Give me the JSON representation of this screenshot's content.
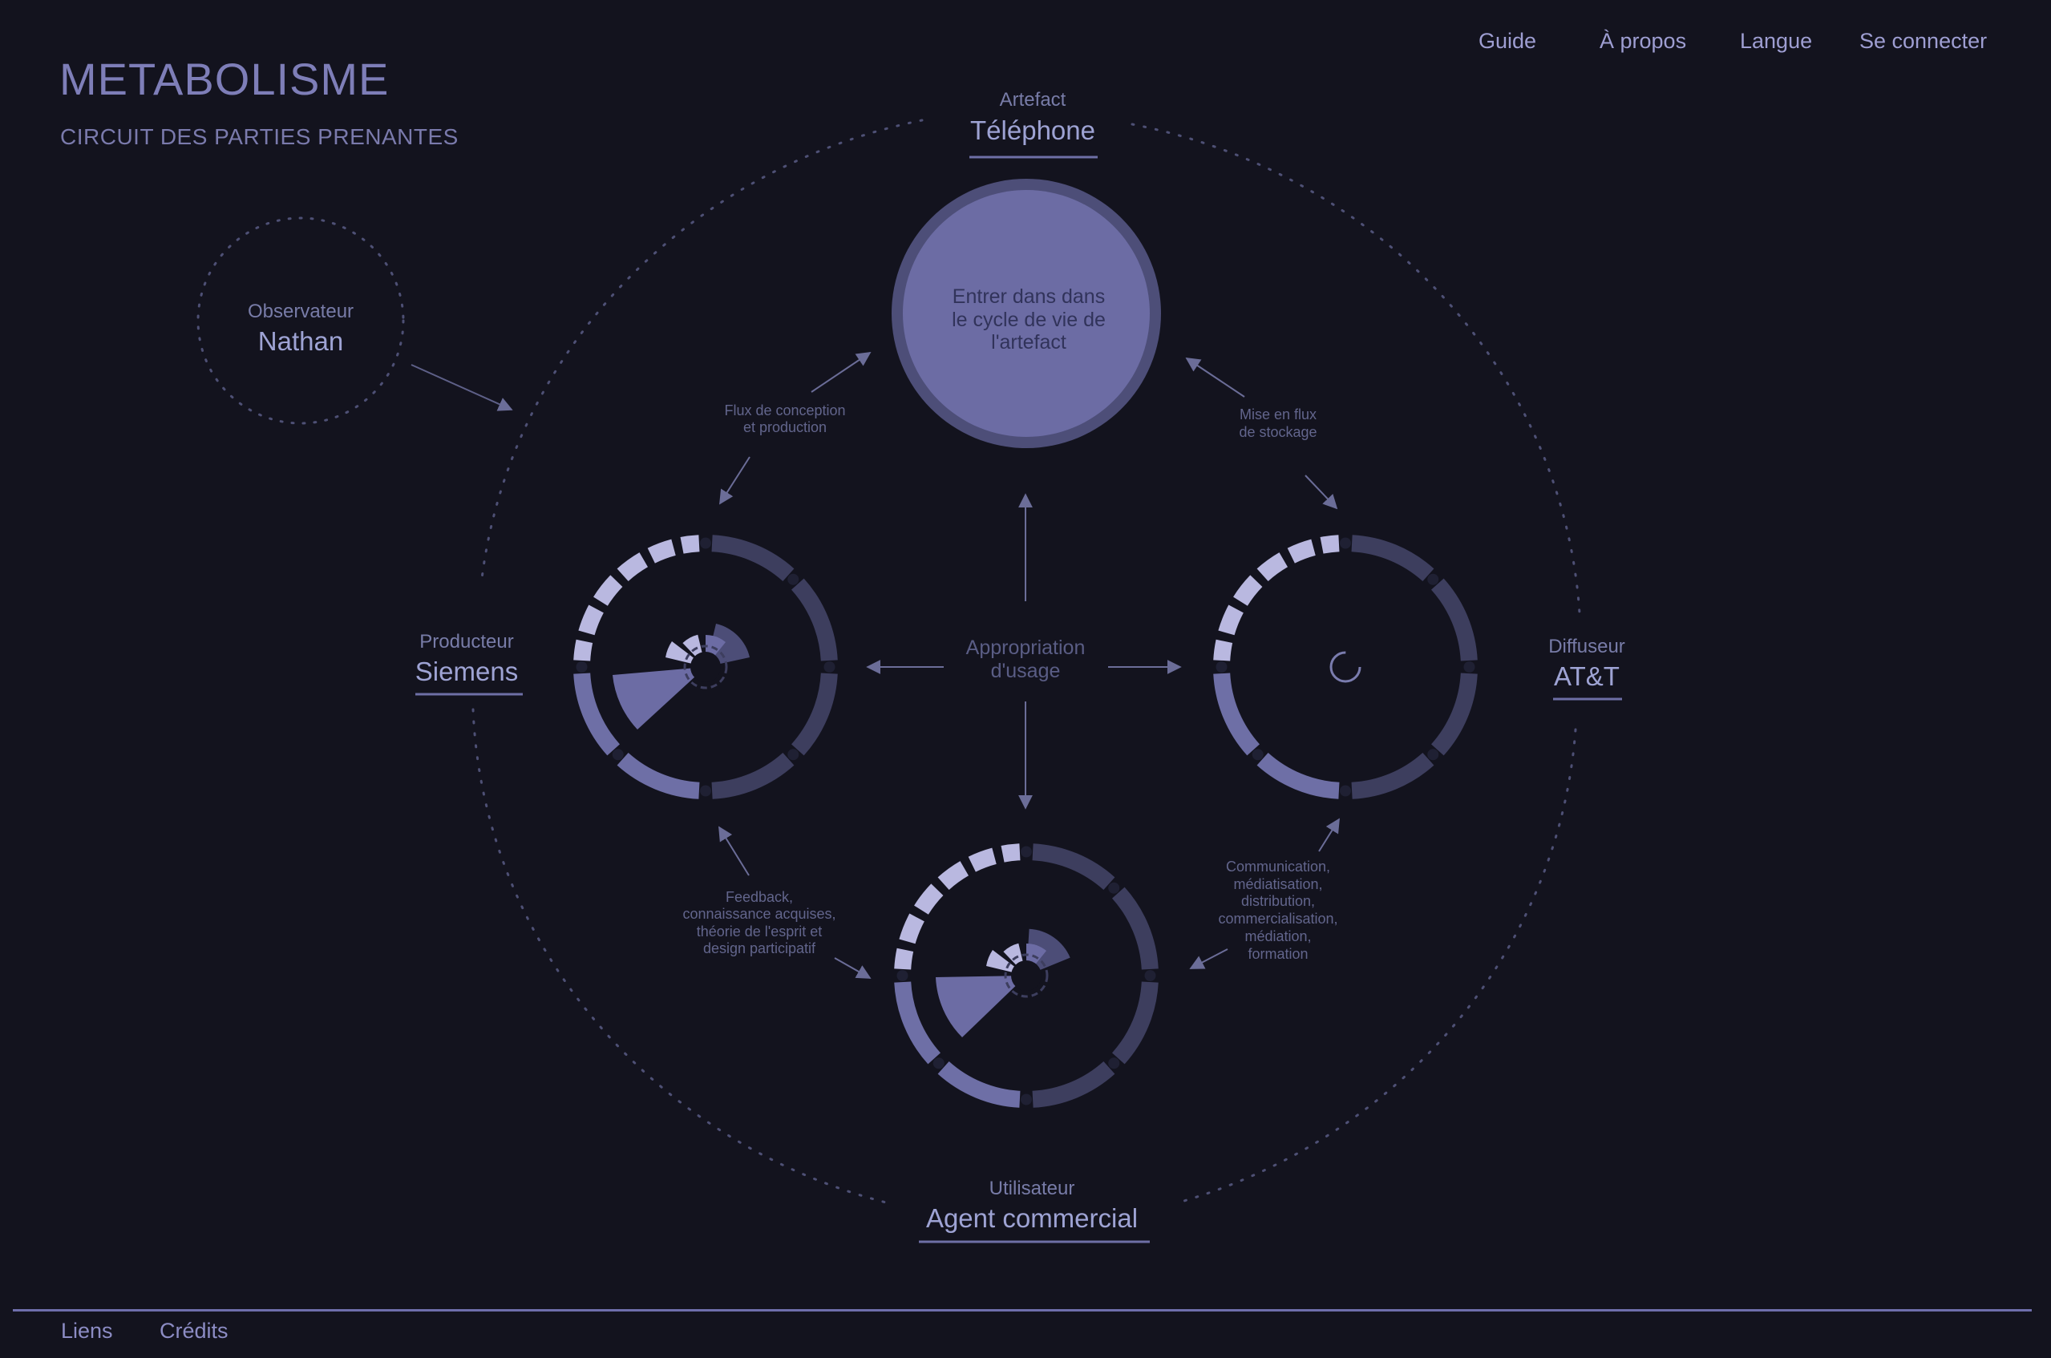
{
  "app": {
    "title": "METABOLISME",
    "subtitle": "CIRCUIT DES PARTIES PRENANTES"
  },
  "nav": {
    "guide": "Guide",
    "about": "À propos",
    "language": "Langue",
    "login": "Se connecter"
  },
  "footer": {
    "links": "Liens",
    "credits": "Crédits"
  },
  "observer": {
    "role": "Observateur",
    "name": "Nathan"
  },
  "artefact": {
    "role": "Artefact",
    "name": "Téléphone",
    "enter_line1": "Entrer dans dans",
    "enter_line2": "le cycle de vie de",
    "enter_line3": "l'artefact"
  },
  "producer": {
    "role": "Producteur",
    "name": "Siemens"
  },
  "distributor": {
    "role": "Diffuseur",
    "name": "AT&T"
  },
  "user": {
    "role": "Utilisateur",
    "name": "Agent commercial"
  },
  "center": {
    "line1": "Appropriation",
    "line2": "d'usage"
  },
  "flows": {
    "design_line1": "Flux de conception",
    "design_line2": "et production",
    "storage_line1": "Mise en flux",
    "storage_line2": "de stockage",
    "feedback_lines": [
      "Feedback,",
      "connaissance acquises,",
      "théorie de l'esprit et",
      "design participatif"
    ],
    "communication_lines": [
      "Communication,",
      "médiatisation,",
      "distribution,",
      "commercialisation,",
      "médiation,",
      "formation"
    ]
  },
  "colors": {
    "background": "#13131e",
    "accent": "#6e6fa6",
    "ring_light": "#b9b8e0",
    "ring_mid": "#6e6fa6",
    "ring_dark": "#3d3e5e",
    "text": "#9ea3d4"
  }
}
